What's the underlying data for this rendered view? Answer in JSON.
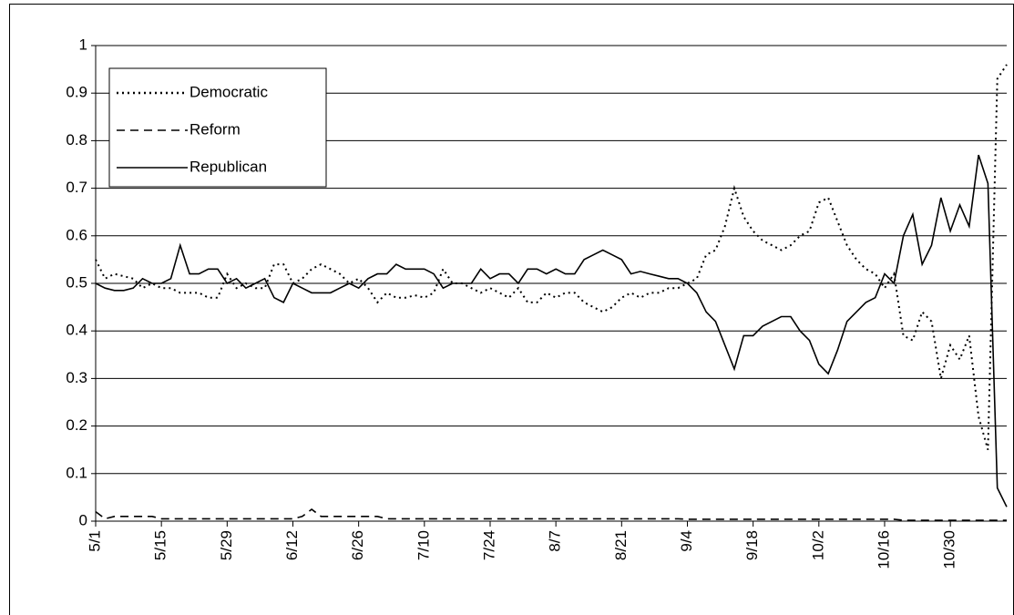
{
  "chart_data": {
    "type": "line",
    "categories": [
      "5/1",
      null,
      null,
      null,
      null,
      null,
      null,
      "5/15",
      null,
      null,
      null,
      null,
      null,
      null,
      "5/29",
      null,
      null,
      null,
      null,
      null,
      null,
      "6/12",
      null,
      null,
      null,
      null,
      null,
      null,
      "6/26",
      null,
      null,
      null,
      null,
      null,
      null,
      "7/10",
      null,
      null,
      null,
      null,
      null,
      null,
      "7/24",
      null,
      null,
      null,
      null,
      null,
      null,
      "8/7",
      null,
      null,
      null,
      null,
      null,
      null,
      "8/21",
      null,
      null,
      null,
      null,
      null,
      null,
      "9/4",
      null,
      null,
      null,
      null,
      null,
      null,
      "9/18",
      null,
      null,
      null,
      null,
      null,
      null,
      "10/2",
      null,
      null,
      null,
      null,
      null,
      null,
      "10/16",
      null,
      null,
      null,
      null,
      null,
      null,
      "10/30",
      null,
      null,
      null,
      null,
      null,
      null
    ],
    "series": [
      {
        "name": "Democratic",
        "color": "#000000",
        "dash": "dotted",
        "values": [
          0.55,
          0.51,
          0.52,
          0.515,
          0.51,
          0.49,
          0.5,
          0.49,
          0.49,
          0.48,
          0.48,
          0.48,
          0.47,
          0.47,
          0.52,
          0.49,
          0.5,
          0.49,
          0.49,
          0.54,
          0.54,
          0.5,
          0.51,
          0.53,
          0.54,
          0.53,
          0.52,
          0.5,
          0.51,
          0.49,
          0.46,
          0.48,
          0.47,
          0.47,
          0.475,
          0.47,
          0.48,
          0.53,
          0.5,
          0.5,
          0.49,
          0.48,
          0.49,
          0.48,
          0.47,
          0.49,
          0.46,
          0.46,
          0.48,
          0.47,
          0.48,
          0.48,
          0.46,
          0.45,
          0.44,
          0.45,
          0.47,
          0.48,
          0.47,
          0.48,
          0.48,
          0.49,
          0.49,
          0.5,
          0.51,
          0.56,
          0.57,
          0.62,
          0.7,
          0.64,
          0.61,
          0.59,
          0.58,
          0.57,
          0.58,
          0.6,
          0.61,
          0.67,
          0.68,
          0.63,
          0.58,
          0.55,
          0.53,
          0.52,
          0.49,
          0.52,
          0.39,
          0.38,
          0.44,
          0.42,
          0.3,
          0.37,
          0.34,
          0.39,
          0.22,
          0.15,
          0.93,
          0.96
        ]
      },
      {
        "name": "Reform",
        "color": "#000000",
        "dash": "dashed",
        "values": [
          0.02,
          0.005,
          0.01,
          0.01,
          0.01,
          0.01,
          0.01,
          0.005,
          0.005,
          0.005,
          0.005,
          0.005,
          0.005,
          0.005,
          0.005,
          0.005,
          0.005,
          0.005,
          0.005,
          0.005,
          0.005,
          0.005,
          0.01,
          0.025,
          0.01,
          0.01,
          0.01,
          0.01,
          0.01,
          0.01,
          0.01,
          0.005,
          0.005,
          0.005,
          0.005,
          0.005,
          0.005,
          0.005,
          0.005,
          0.005,
          0.005,
          0.005,
          0.005,
          0.005,
          0.005,
          0.005,
          0.005,
          0.005,
          0.005,
          0.005,
          0.005,
          0.005,
          0.005,
          0.005,
          0.005,
          0.005,
          0.005,
          0.005,
          0.005,
          0.005,
          0.005,
          0.005,
          0.005,
          0.004,
          0.004,
          0.004,
          0.004,
          0.004,
          0.004,
          0.004,
          0.004,
          0.004,
          0.004,
          0.004,
          0.004,
          0.004,
          0.004,
          0.004,
          0.004,
          0.004,
          0.004,
          0.004,
          0.004,
          0.004,
          0.004,
          0.004,
          0.002,
          0.002,
          0.002,
          0.002,
          0.002,
          0.002,
          0.002,
          0.002,
          0.002,
          0.002,
          0.002,
          0.002
        ]
      },
      {
        "name": "Republican",
        "color": "#000000",
        "dash": "solid",
        "values": [
          0.5,
          0.49,
          0.485,
          0.485,
          0.49,
          0.51,
          0.5,
          0.5,
          0.51,
          0.58,
          0.52,
          0.52,
          0.53,
          0.53,
          0.5,
          0.51,
          0.49,
          0.5,
          0.51,
          0.47,
          0.46,
          0.5,
          0.49,
          0.48,
          0.48,
          0.48,
          0.49,
          0.5,
          0.49,
          0.51,
          0.52,
          0.52,
          0.54,
          0.53,
          0.53,
          0.53,
          0.52,
          0.49,
          0.5,
          0.5,
          0.5,
          0.53,
          0.51,
          0.52,
          0.52,
          0.5,
          0.53,
          0.53,
          0.52,
          0.53,
          0.52,
          0.52,
          0.55,
          0.56,
          0.57,
          0.56,
          0.55,
          0.52,
          0.525,
          0.52,
          0.515,
          0.51,
          0.51,
          0.5,
          0.48,
          0.44,
          0.42,
          0.37,
          0.32,
          0.39,
          0.39,
          0.41,
          0.42,
          0.43,
          0.43,
          0.4,
          0.38,
          0.33,
          0.31,
          0.36,
          0.42,
          0.44,
          0.46,
          0.47,
          0.52,
          0.5,
          0.6,
          0.645,
          0.54,
          0.58,
          0.68,
          0.61,
          0.665,
          0.62,
          0.77,
          0.71,
          0.07,
          0.03
        ]
      }
    ],
    "ylim": [
      0,
      1
    ],
    "yticks": [
      0,
      0.1,
      0.2,
      0.3,
      0.4,
      0.5,
      0.6,
      0.7,
      0.8,
      0.9,
      1
    ],
    "grid": true,
    "legend": "top-left"
  }
}
